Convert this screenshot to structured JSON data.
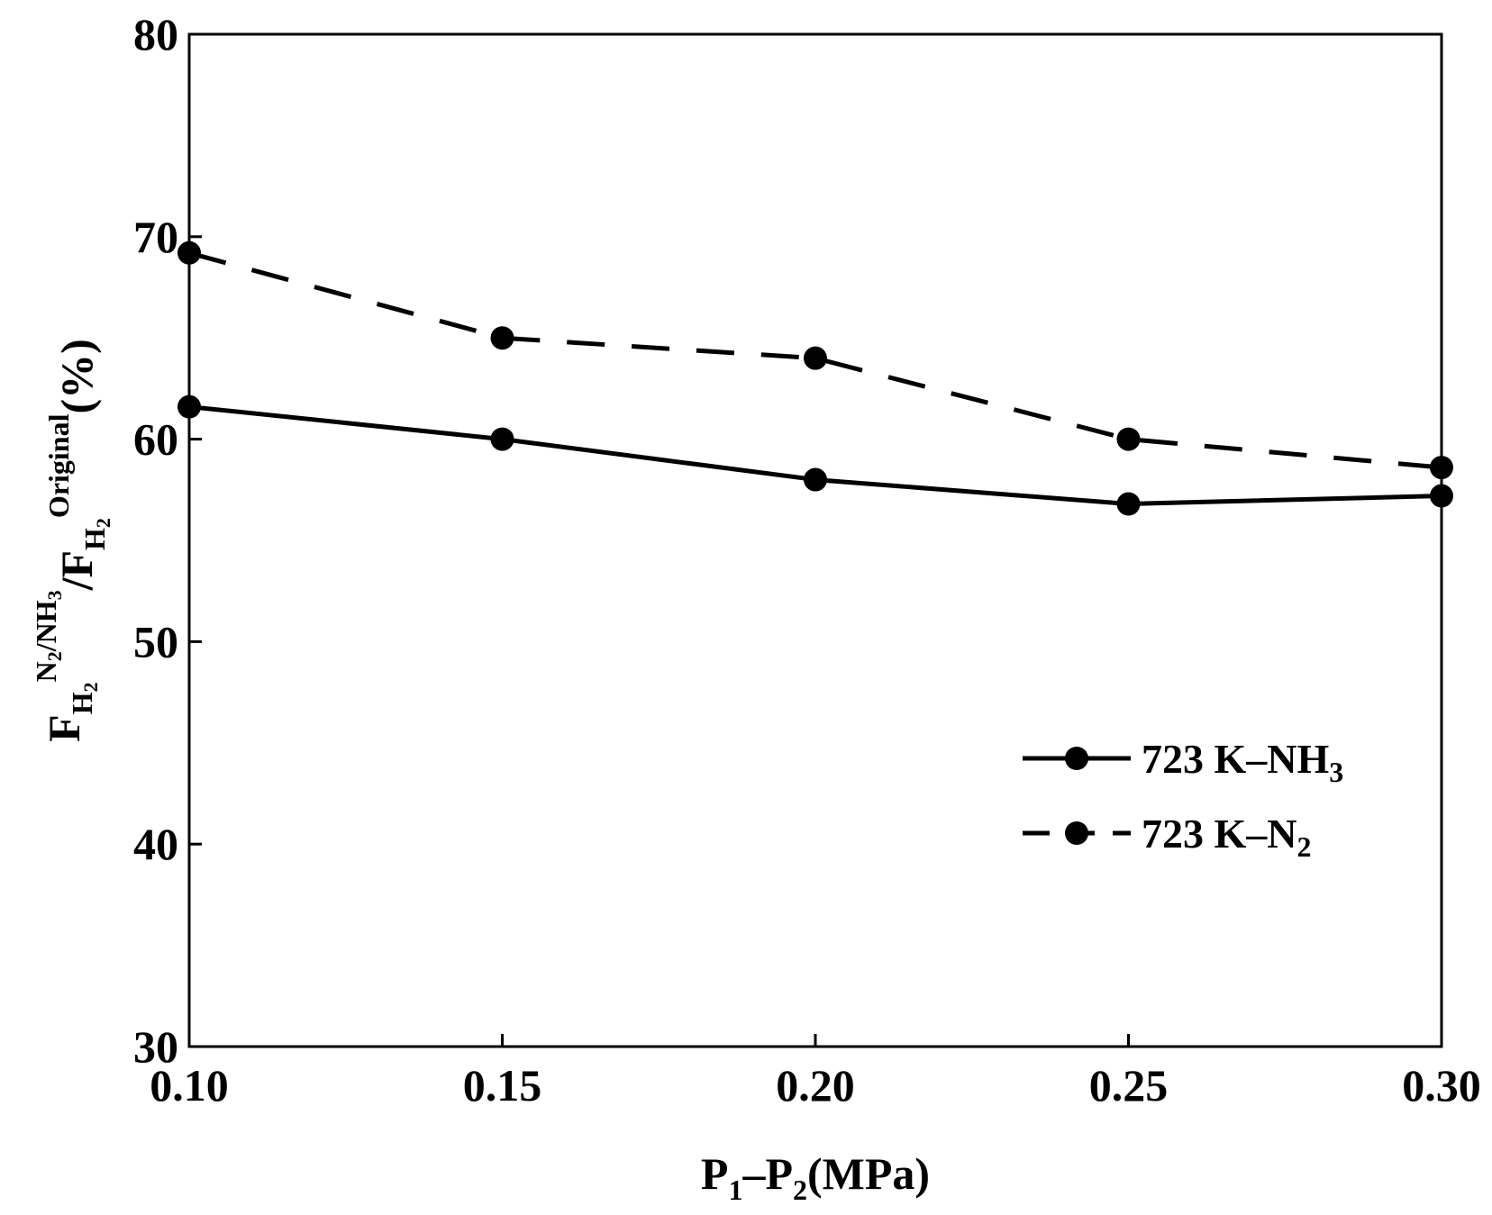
{
  "chart_data": {
    "type": "line",
    "title": "",
    "xlabel": {
      "main": "P",
      "s1": "1",
      "dash": "–P",
      "s2": "2",
      "rest": "(MPa)"
    },
    "ylabel": {
      "f1": "F",
      "sub1": "H",
      "sub1b": "2",
      "sup1": "N",
      "sup1b": "2",
      "sup1c": "/NH",
      "sup1d": "3",
      "slash": "/F",
      "sub2": "H",
      "sub2b": "2",
      "sup2": "Original",
      "unit": "(%)"
    },
    "x_ticks": [
      "0.10",
      "0.15",
      "0.20",
      "0.25",
      "0.30"
    ],
    "y_ticks": [
      "30",
      "40",
      "50",
      "60",
      "70",
      "80"
    ],
    "xlim": [
      0.1,
      0.3
    ],
    "ylim": [
      30,
      80
    ],
    "x": [
      0.1,
      0.15,
      0.2,
      0.25,
      0.3
    ],
    "series": [
      {
        "name": "723 K–NH3",
        "label_main": "723 K–NH",
        "label_sub": "3",
        "style": "solid",
        "values": [
          61.6,
          60.0,
          58.0,
          56.8,
          57.2
        ]
      },
      {
        "name": "723 K–N2",
        "label_main": "723 K–N",
        "label_sub": "2",
        "style": "dashed",
        "values": [
          69.2,
          65.0,
          64.0,
          60.0,
          58.6
        ]
      }
    ],
    "legend_position": "lower-right",
    "colors": {
      "line": "#000000",
      "background": "#ffffff"
    }
  }
}
